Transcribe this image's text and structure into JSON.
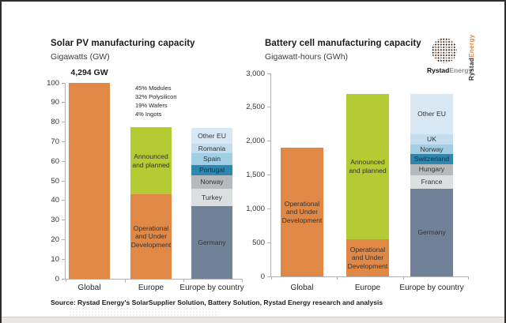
{
  "source_note": "Source: Rystad Energy's SolarSupplier Solution, Battery Solution, Rystad Energy research and analysis",
  "logo": {
    "icon": "dotted-globe-icon",
    "brand_bold": "Rystad",
    "brand_light": "Energy"
  },
  "side_brand": {
    "bold": "Rystad",
    "accent": "Energy"
  },
  "colors": {
    "orange": "#e08845",
    "green": "#b4cb34",
    "slate": "#718298",
    "light_gray": "#dcdfe0",
    "mid_gray": "#b7babc",
    "teal": "#2e87ae",
    "blue_medium": "#a0cee5",
    "blue_light": "#c4ddef",
    "blue_pale": "#d8e9f5",
    "axis": "#aeb3b6"
  },
  "chart_data": [
    {
      "type": "bar",
      "stacked": true,
      "title": "Solar PV manufacturing capacity",
      "subtitle": "Gigawatts (GW)",
      "unit": "GW",
      "ylim": [
        0,
        100
      ],
      "yticks": [
        "0",
        "10",
        "20",
        "30",
        "40",
        "50",
        "60",
        "70",
        "80",
        "90",
        "100"
      ],
      "grid": false,
      "legend": "inline-segment-labels",
      "categories": [
        "Global",
        "Europe",
        "Europe by country"
      ],
      "annotation": {
        "text": "4,294 GW",
        "bar_index": 0
      },
      "notes": [
        "45% Modules",
        "32% Polysilicon",
        "19% Wafers",
        "4% Ingots"
      ],
      "bars": [
        {
          "category": "Global",
          "segments": [
            {
              "label": "",
              "value": 100,
              "color": "orange"
            }
          ]
        },
        {
          "category": "Europe",
          "segments": [
            {
              "label": "Operational and Under Development",
              "value": 43,
              "color": "orange"
            },
            {
              "label": "Announced and planned",
              "value": 34.5,
              "color": "green"
            }
          ]
        },
        {
          "category": "Europe by country",
          "segments": [
            {
              "label": "Germany",
              "value": 37,
              "color": "slate"
            },
            {
              "label": "Turkey",
              "value": 9,
              "color": "light_gray"
            },
            {
              "label": "Norway",
              "value": 7,
              "color": "mid_gray"
            },
            {
              "label": "Portugal",
              "value": 5,
              "color": "teal"
            },
            {
              "label": "Spain",
              "value": 6,
              "color": "blue_medium"
            },
            {
              "label": "Romania",
              "value": 5,
              "color": "blue_light"
            },
            {
              "label": "Other EU",
              "value": 8,
              "color": "blue_pale"
            }
          ]
        }
      ]
    },
    {
      "type": "bar",
      "stacked": true,
      "title": "Battery cell manufacturing capacity",
      "subtitle": "Gigawatt-hours (GWh)",
      "unit": "GWh",
      "ylim": [
        0,
        3000
      ],
      "yticks": [
        "0",
        "500",
        "1,000",
        "1,500",
        "2,000",
        "2,500",
        "3,000"
      ],
      "grid": false,
      "legend": "inline-segment-labels",
      "categories": [
        "Global",
        "Europe",
        "Europe by country"
      ],
      "bars": [
        {
          "category": "Global",
          "segments": [
            {
              "label": "Operational and Under Development",
              "value": 1900,
              "color": "orange"
            }
          ]
        },
        {
          "category": "Europe",
          "segments": [
            {
              "label": "Operational and Under Development",
              "value": 550,
              "color": "orange"
            },
            {
              "label": "Announced and planned",
              "value": 2150,
              "color": "green"
            }
          ]
        },
        {
          "category": "Europe by country",
          "segments": [
            {
              "label": "Germany",
              "value": 1300,
              "color": "slate"
            },
            {
              "label": "France",
              "value": 200,
              "color": "light_gray"
            },
            {
              "label": "Hungary",
              "value": 160,
              "color": "mid_gray"
            },
            {
              "label": "Switzerland",
              "value": 150,
              "color": "teal"
            },
            {
              "label": "Norway",
              "value": 140,
              "color": "blue_medium"
            },
            {
              "label": "UK",
              "value": 150,
              "color": "blue_light"
            },
            {
              "label": "Other EU",
              "value": 600,
              "color": "blue_pale"
            }
          ]
        }
      ]
    }
  ]
}
